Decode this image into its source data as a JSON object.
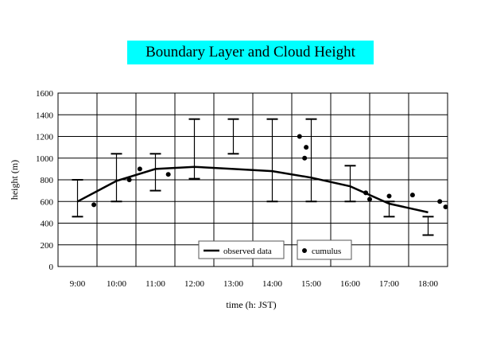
{
  "chart_data": {
    "type": "line",
    "title": "Boundary Layer and Cloud Height",
    "xlabel": "time (h: JST)",
    "ylabel": "height (m)",
    "x_range": [
      8.5,
      18.5
    ],
    "ylim": [
      0,
      1600
    ],
    "x_ticks": [
      {
        "value": 9,
        "label": "9:00"
      },
      {
        "value": 10,
        "label": "10:00"
      },
      {
        "value": 11,
        "label": "11:00"
      },
      {
        "value": 12,
        "label": "12:00"
      },
      {
        "value": 13,
        "label": "13:00"
      },
      {
        "value": 14,
        "label": "14:00"
      },
      {
        "value": 15,
        "label": "15:00"
      },
      {
        "value": 16,
        "label": "16:00"
      },
      {
        "value": 17,
        "label": "17:00"
      },
      {
        "value": 18,
        "label": "18:00"
      }
    ],
    "y_ticks": [
      0,
      200,
      400,
      600,
      800,
      1000,
      1200,
      1400,
      1600
    ],
    "grid": true,
    "legend": [
      {
        "label": "observed data",
        "marker": "line"
      },
      {
        "label": "cumulus",
        "marker": "dot"
      }
    ],
    "legend_position": "bottom-center",
    "series": [
      {
        "name": "observed data",
        "type": "line",
        "points": [
          {
            "x": 9,
            "y": 600
          },
          {
            "x": 10,
            "y": 790
          },
          {
            "x": 11,
            "y": 900
          },
          {
            "x": 12,
            "y": 920
          },
          {
            "x": 13,
            "y": 900
          },
          {
            "x": 14,
            "y": 880
          },
          {
            "x": 15,
            "y": 820
          },
          {
            "x": 16,
            "y": 740
          },
          {
            "x": 17,
            "y": 580
          },
          {
            "x": 18,
            "y": 500
          }
        ],
        "error_bars": [
          {
            "x": 9,
            "low": 460,
            "high": 800
          },
          {
            "x": 10,
            "low": 600,
            "high": 1040
          },
          {
            "x": 11,
            "low": 700,
            "high": 1040
          },
          {
            "x": 12,
            "low": 810,
            "high": 1360
          },
          {
            "x": 13,
            "low": 1040,
            "high": 1360
          },
          {
            "x": 14,
            "low": 600,
            "high": 1360
          },
          {
            "x": 15,
            "low": 600,
            "high": 1360
          },
          {
            "x": 16,
            "low": 600,
            "high": 930
          },
          {
            "x": 17,
            "low": 460,
            "high": 600
          },
          {
            "x": 18,
            "low": 290,
            "high": 460
          }
        ]
      },
      {
        "name": "cumulus",
        "type": "scatter",
        "points": [
          {
            "x": 9.42,
            "y": 570
          },
          {
            "x": 10.33,
            "y": 800
          },
          {
            "x": 10.6,
            "y": 900
          },
          {
            "x": 11.33,
            "y": 850
          },
          {
            "x": 14.7,
            "y": 1200
          },
          {
            "x": 14.83,
            "y": 1000
          },
          {
            "x": 14.87,
            "y": 1100
          },
          {
            "x": 16.4,
            "y": 680
          },
          {
            "x": 16.5,
            "y": 620
          },
          {
            "x": 17,
            "y": 650
          },
          {
            "x": 17.6,
            "y": 660
          },
          {
            "x": 18.3,
            "y": 600
          },
          {
            "x": 18.45,
            "y": 550
          }
        ]
      }
    ]
  }
}
